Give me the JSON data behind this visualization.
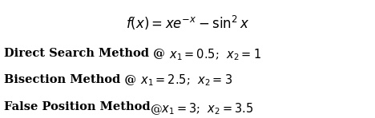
{
  "title_math": "$f(x) = xe^{-x} - \\sin^2 x$",
  "line1_bold": "Direct Search Method @ ",
  "line1_math": "$x_1 = 0.5$;  $x_2 = 1$",
  "line2_bold": "Bisection Method @ ",
  "line2_math": "$x_1 = 2.5$;  $x_2 = 3$",
  "line3_bold": "False Position Method",
  "line3_math": "@$x_1 = 3$;  $x_2 = 3.5$",
  "bg_color": "#ffffff",
  "text_color": "#000000",
  "title_fontsize": 12,
  "body_fontsize": 10.5
}
